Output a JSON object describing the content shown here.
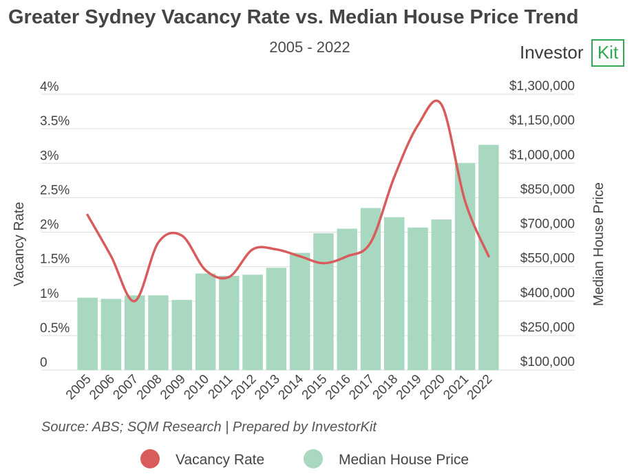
{
  "logo": {
    "name_main": "Investor",
    "name_accent": "Kit"
  },
  "chart_data": {
    "type": "bar+line",
    "title": "Greater Sydney Vacancy Rate vs. Median House Price Trend",
    "subtitle": "2005 - 2022",
    "categories": [
      "2005",
      "2006",
      "2007",
      "2008",
      "2009",
      "2010",
      "2011",
      "2012",
      "2013",
      "2014",
      "2015",
      "2016",
      "2017",
      "2018",
      "2019",
      "2020",
      "2021",
      "2022"
    ],
    "series": [
      {
        "name": "Median House Price",
        "type": "bar",
        "axis": "right",
        "color": "#a8d8bf",
        "values": [
          415000,
          410000,
          425000,
          425000,
          405000,
          520000,
          510000,
          515000,
          545000,
          610000,
          695000,
          715000,
          805000,
          765000,
          720000,
          755000,
          1000000,
          1080000
        ]
      },
      {
        "name": "Vacancy Rate",
        "type": "line",
        "axis": "left",
        "color": "#d95c5c",
        "values": [
          2.25,
          1.65,
          1.0,
          1.85,
          1.95,
          1.45,
          1.35,
          1.75,
          1.75,
          1.65,
          1.55,
          1.65,
          1.85,
          2.8,
          3.55,
          3.85,
          2.45,
          1.65
        ]
      }
    ],
    "y_left": {
      "label": "Vacancy Rate",
      "range": [
        0,
        4
      ],
      "ticks": [
        "0",
        "0.5%",
        "1%",
        "1.5%",
        "2%",
        "2.5%",
        "3%",
        "3.5%",
        "4%"
      ]
    },
    "y_right": {
      "label": "Median House Price",
      "range": [
        100000,
        1300000
      ],
      "ticks": [
        "$100,000",
        "$250,000",
        "$400,000",
        "$550,000",
        "$700,000",
        "$850,000",
        "$1,000,000",
        "$1,150,000",
        "$1,300,000"
      ]
    },
    "grid": true,
    "legend": {
      "position": "bottom",
      "items": [
        "Vacancy Rate",
        "Median House Price"
      ]
    },
    "source": "Source: ABS; SQM Research | Prepared by InvestorKit"
  }
}
